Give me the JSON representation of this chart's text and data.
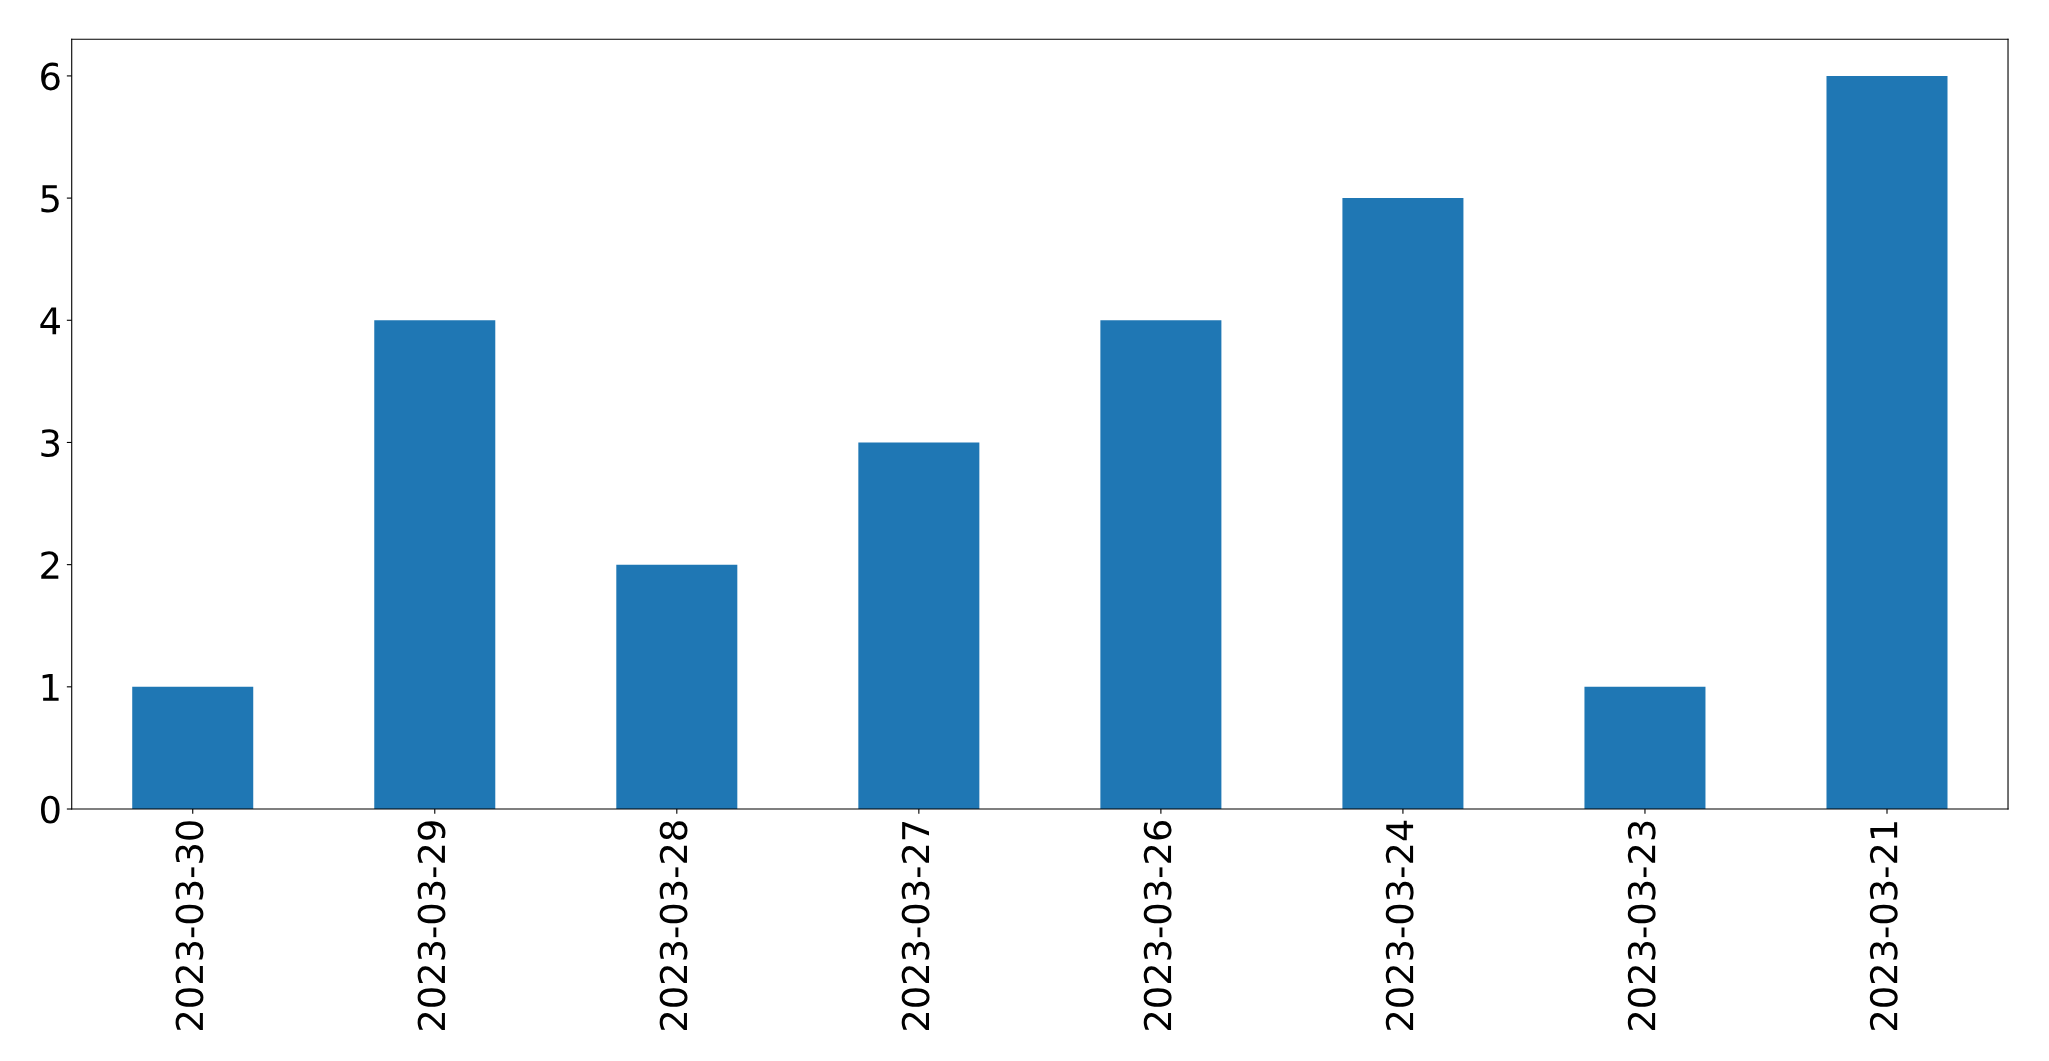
{
  "chart_data": {
    "type": "bar",
    "categories": [
      "2023-03-30",
      "2023-03-29",
      "2023-03-28",
      "2023-03-27",
      "2023-03-26",
      "2023-03-24",
      "2023-03-23",
      "2023-03-21"
    ],
    "values": [
      1,
      4,
      2,
      3,
      4,
      5,
      1,
      6
    ],
    "color": "#1f77b4",
    "ylim": [
      0,
      6.3
    ],
    "yticks": [
      0,
      1,
      2,
      3,
      4,
      5,
      6
    ],
    "grid": false,
    "legend": false
  }
}
